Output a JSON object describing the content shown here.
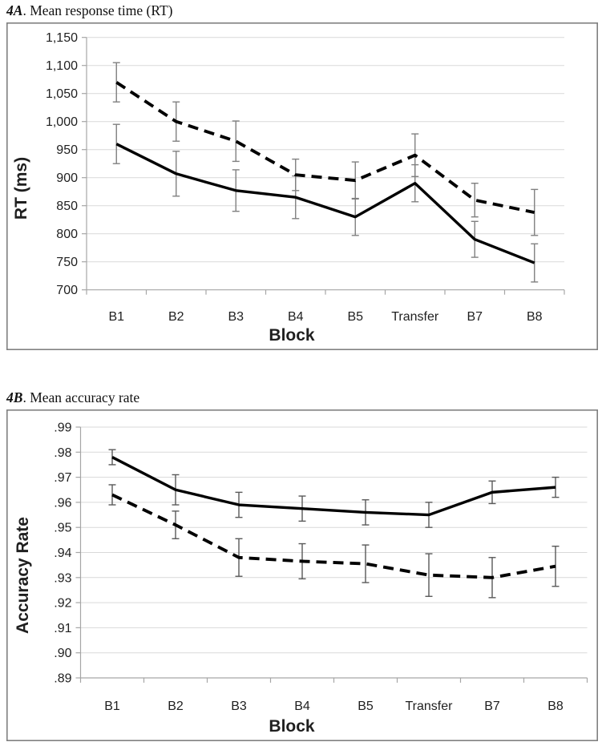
{
  "page": {
    "background": "#ffffff"
  },
  "figures": [
    {
      "label": "4A",
      "caption": ". Mean response time (RT)"
    },
    {
      "label": "4B",
      "caption": ". Mean accuracy rate"
    }
  ],
  "chart_data": [
    {
      "id": "rt-chart",
      "type": "line",
      "title": "4A. Mean response time (RT)",
      "categories": [
        "B1",
        "B2",
        "B3",
        "B4",
        "B5",
        "Transfer",
        "B7",
        "B8"
      ],
      "series": [
        {
          "name": "upper-dashed-series",
          "style": "dashed",
          "values": [
            1070,
            1000,
            965,
            905,
            895,
            940,
            860,
            838
          ],
          "errors": [
            35,
            35,
            36,
            28,
            33,
            38,
            30,
            41
          ]
        },
        {
          "name": "lower-solid-series",
          "style": "solid",
          "values": [
            960,
            907,
            877,
            865,
            830,
            890,
            790,
            748
          ],
          "errors": [
            35,
            40,
            37,
            38,
            33,
            33,
            32,
            34
          ]
        }
      ],
      "xlabel": "Block",
      "ylabel": "RT (ms)",
      "ylim": [
        700,
        1150
      ],
      "ytick_step": 50,
      "ytick_format": "comma",
      "grid": true,
      "legend": "none",
      "line_color": "#000000",
      "error_color": "#808080",
      "grid_color": "#d9d9d9",
      "axis_color": "#a6a6a6",
      "border_color": "#808080"
    },
    {
      "id": "accuracy-chart",
      "type": "line",
      "title": "4B. Mean accuracy rate",
      "categories": [
        "B1",
        "B2",
        "B3",
        "B4",
        "B5",
        "Transfer",
        "B7",
        "B8"
      ],
      "series": [
        {
          "name": "upper-solid-series",
          "style": "solid",
          "values": [
            0.978,
            0.965,
            0.959,
            0.9575,
            0.956,
            0.955,
            0.964,
            0.966
          ],
          "errors": [
            0.003,
            0.006,
            0.005,
            0.005,
            0.005,
            0.005,
            0.0045,
            0.004
          ]
        },
        {
          "name": "lower-dashed-series",
          "style": "dashed",
          "values": [
            0.963,
            0.951,
            0.938,
            0.9365,
            0.9355,
            0.931,
            0.93,
            0.9345
          ],
          "errors": [
            0.004,
            0.0055,
            0.0075,
            0.007,
            0.0075,
            0.0085,
            0.008,
            0.008
          ]
        }
      ],
      "xlabel": "Block",
      "ylabel": "Accuracy Rate",
      "ylim": [
        0.89,
        0.99
      ],
      "ytick_step": 0.01,
      "ytick_format": "dot2",
      "grid": true,
      "legend": "none",
      "line_color": "#000000",
      "error_color": "#595959",
      "grid_color": "#d9d9d9",
      "axis_color": "#a6a6a6",
      "border_color": "#808080"
    }
  ]
}
